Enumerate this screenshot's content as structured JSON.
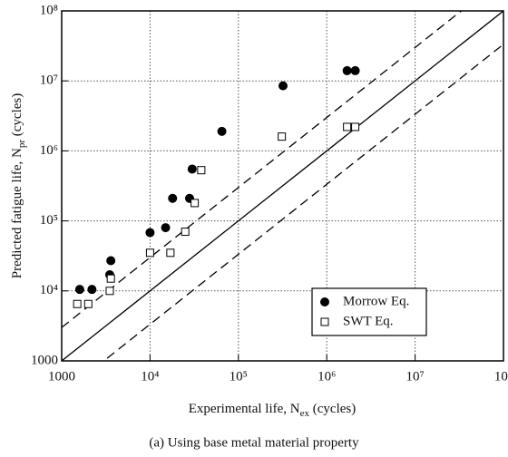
{
  "chart_data": {
    "type": "scatter",
    "x_label": [
      "Experimental life, N",
      "ex",
      "  (cycles)"
    ],
    "y_label": [
      "Predicted fatigue life, N",
      "pr",
      " (cycles)"
    ],
    "caption": "(a)  Using base metal material property",
    "log_x": true,
    "log_y": true,
    "grid": true,
    "xlim": [
      1000,
      100000000
    ],
    "ylim": [
      1000,
      100000000
    ],
    "xticks": [
      1000,
      {
        "value": 10000,
        "label": "10⁴"
      },
      {
        "value": 100000,
        "label": "10⁵"
      },
      {
        "value": 1000000,
        "label": "10⁶"
      },
      {
        "value": 10000000,
        "label": "10⁷"
      },
      {
        "value": 100000000,
        "label": "10⁸"
      }
    ],
    "yticks": [
      1000,
      {
        "value": 10000,
        "label": "10⁴"
      },
      {
        "value": 100000,
        "label": "10⁵"
      },
      {
        "value": 1000000,
        "label": "10⁶"
      },
      {
        "value": 10000000,
        "label": "10⁷"
      },
      {
        "value": 100000000,
        "label": "10⁸"
      }
    ],
    "scatter_band_factor": 3,
    "legend": "lower right",
    "series": [
      {
        "name": "Morrow Eq.",
        "color": "#000000",
        "marker": "circle",
        "x": [
          1600,
          2200,
          3500,
          3600,
          10000,
          15000,
          18000,
          28000,
          30000,
          65000,
          320000,
          1700000,
          2100000
        ],
        "values": [
          10500,
          10500,
          17000,
          27000,
          68000,
          80000,
          210000,
          210000,
          550000,
          1900000,
          8500000,
          14000000,
          14000000
        ]
      },
      {
        "name": "SWT Eq.",
        "color": "#ffffff",
        "marker": "square",
        "x": [
          1500,
          2000,
          3500,
          3600,
          10000,
          17000,
          25000,
          32000,
          38000,
          310000,
          1700000,
          2100000
        ],
        "values": [
          6500,
          6500,
          10000,
          15000,
          35000,
          35000,
          70000,
          180000,
          530000,
          1600000,
          2200000,
          2200000
        ]
      }
    ]
  }
}
